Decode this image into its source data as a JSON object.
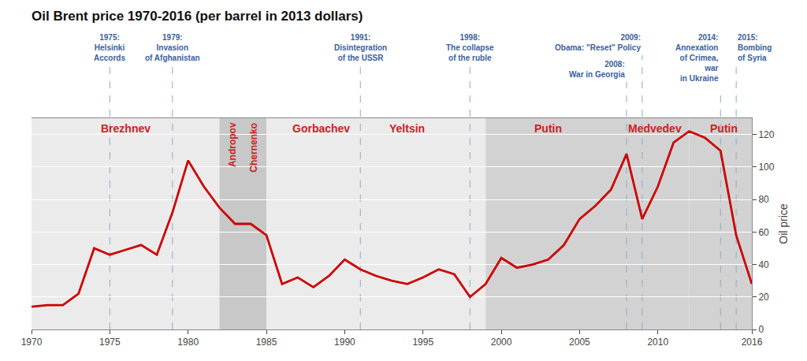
{
  "chart_data": {
    "type": "line",
    "title": "Oil Brent price 1970-2016 (per barrel in 2013 dollars)",
    "ylabel": "Oil price",
    "x": [
      1970,
      1971,
      1972,
      1973,
      1974,
      1975,
      1976,
      1977,
      1978,
      1979,
      1980,
      1981,
      1982,
      1983,
      1984,
      1985,
      1986,
      1987,
      1988,
      1989,
      1990,
      1991,
      1992,
      1993,
      1994,
      1995,
      1996,
      1997,
      1998,
      1999,
      2000,
      2001,
      2002,
      2003,
      2004,
      2005,
      2006,
      2007,
      2008,
      2009,
      2010,
      2011,
      2012,
      2013,
      2014,
      2015,
      2016
    ],
    "values": [
      14,
      15,
      15,
      22,
      50,
      46,
      49,
      52,
      46,
      72,
      104,
      88,
      75,
      65,
      65,
      58,
      28,
      32,
      26,
      33,
      43,
      37,
      33,
      30,
      28,
      32,
      37,
      34,
      20,
      28,
      44,
      38,
      40,
      43,
      52,
      68,
      76,
      86,
      108,
      68,
      88,
      115,
      122,
      118,
      110,
      58,
      28
    ],
    "color": "#cc0000",
    "xlim": [
      1970,
      2016
    ],
    "ylim": [
      0,
      130
    ],
    "xticks": [
      1970,
      1975,
      1980,
      1985,
      1990,
      1995,
      2000,
      2005,
      2010,
      2016
    ],
    "yticks": [
      0,
      20,
      40,
      60,
      80,
      100,
      120
    ],
    "grid": true,
    "spans": [
      {
        "start": 1970,
        "end": 1982,
        "color": "#ebebeb"
      },
      {
        "start": 1982,
        "end": 1985,
        "color": "#c8c8c8"
      },
      {
        "start": 1985,
        "end": 1999,
        "color": "#ebebeb"
      },
      {
        "start": 1999,
        "end": 2008,
        "color": "#d2d2d2"
      },
      {
        "start": 2008,
        "end": 2012,
        "color": "#d2d2d2"
      },
      {
        "start": 2012,
        "end": 2016,
        "color": "#d2d2d2"
      }
    ],
    "era_labels": [
      {
        "x": 1976.0,
        "text": "Brezhnev",
        "color": "#cc2222"
      },
      {
        "x": 1982.8,
        "text": "Andropov",
        "color": "#cc2222"
      },
      {
        "x": 1984.2,
        "text": "Chernenko",
        "color": "#cc2222"
      },
      {
        "x": 1988.5,
        "text": "Gorbachev",
        "color": "#cc2222"
      },
      {
        "x": 1994.0,
        "text": "Yeltsin",
        "color": "#cc2222"
      },
      {
        "x": 2003.0,
        "text": "Putin",
        "color": "#cc2222"
      },
      {
        "x": 2009.8,
        "text": "Medvedev",
        "color": "#cc2222"
      },
      {
        "x": 2014.2,
        "text": "Putin",
        "color": "#cc2222"
      }
    ],
    "annotations": [
      {
        "x": 1975,
        "text": "1975:\nHelsinki\nAccords",
        "color": "#3a5fa0",
        "line_color": "#8aabcc",
        "line_style": "dashed"
      },
      {
        "x": 1979,
        "text": "1979:\nInvasion\nof Afghanistan",
        "color": "#3a5fa0",
        "line_color": "#8aabcc",
        "line_style": "dashed"
      },
      {
        "x": 1991,
        "text": "1991:\nDisintegration\nof the USSR",
        "color": "#3a5fa0",
        "line_color": "#8aabcc",
        "line_style": "dashed"
      },
      {
        "x": 1998,
        "text": "1998:\nThe collapse\nof the ruble",
        "color": "#3a5fa0",
        "line_color": "#8aabcc",
        "line_style": "dashed"
      },
      {
        "x": 2008,
        "text": "2008:\nWar in Georgia",
        "color": "#3a5fa0",
        "line_color": "#8aabcc",
        "line_style": "dashed"
      },
      {
        "x": 2009,
        "text": "2009:\nObama: \"Reset\" Policy",
        "color": "#3a5fa0",
        "line_color": "#8aabcc",
        "line_style": "dashed"
      },
      {
        "x": 2014,
        "text": "2014:\nAnnexation\nof Crimea,\nwar\nin Ukraine",
        "color": "#3a5fa0",
        "line_color": "#8aabcc",
        "line_style": "dashed"
      },
      {
        "x": 2015,
        "text": "2015:\nBombing\nof Syria",
        "color": "#3a5fa0",
        "line_color": "#8aabcc",
        "line_style": "dashed"
      }
    ]
  }
}
